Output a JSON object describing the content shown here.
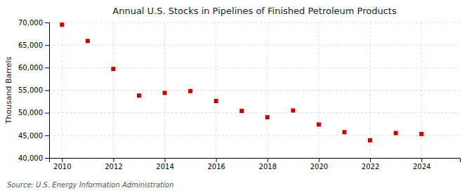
{
  "chart_data": {
    "type": "scatter",
    "title": "Annual U.S. Stocks in Pipelines of Finished Petroleum Products",
    "ylabel": "Thousand Barrels",
    "annotation": "Source: U.S. Energy Information Administration",
    "x": [
      2010,
      2011,
      2012,
      2013,
      2014,
      2015,
      2016,
      2017,
      2018,
      2019,
      2020,
      2021,
      2022,
      2023,
      2024
    ],
    "values": [
      69500,
      65900,
      59700,
      53800,
      54400,
      54800,
      52600,
      50400,
      49000,
      50500,
      47400,
      45700,
      43900,
      45500,
      45300
    ],
    "color": "#cc0000",
    "marker": "square",
    "xlim": [
      2009.5,
      2025.5
    ],
    "ylim": [
      40000,
      70000
    ],
    "xticks": [
      2010,
      2012,
      2014,
      2016,
      2018,
      2020,
      2022,
      2024
    ],
    "yticks": [
      {
        "value": 40000,
        "label": "40,000"
      },
      {
        "value": 45000,
        "label": "45,000"
      },
      {
        "value": 50000,
        "label": "50,000"
      },
      {
        "value": 55000,
        "label": "55,000"
      },
      {
        "value": 60000,
        "label": "60,000"
      },
      {
        "value": 65000,
        "label": "65,000"
      },
      {
        "value": 70000,
        "label": "70,000"
      }
    ],
    "grid": true
  }
}
